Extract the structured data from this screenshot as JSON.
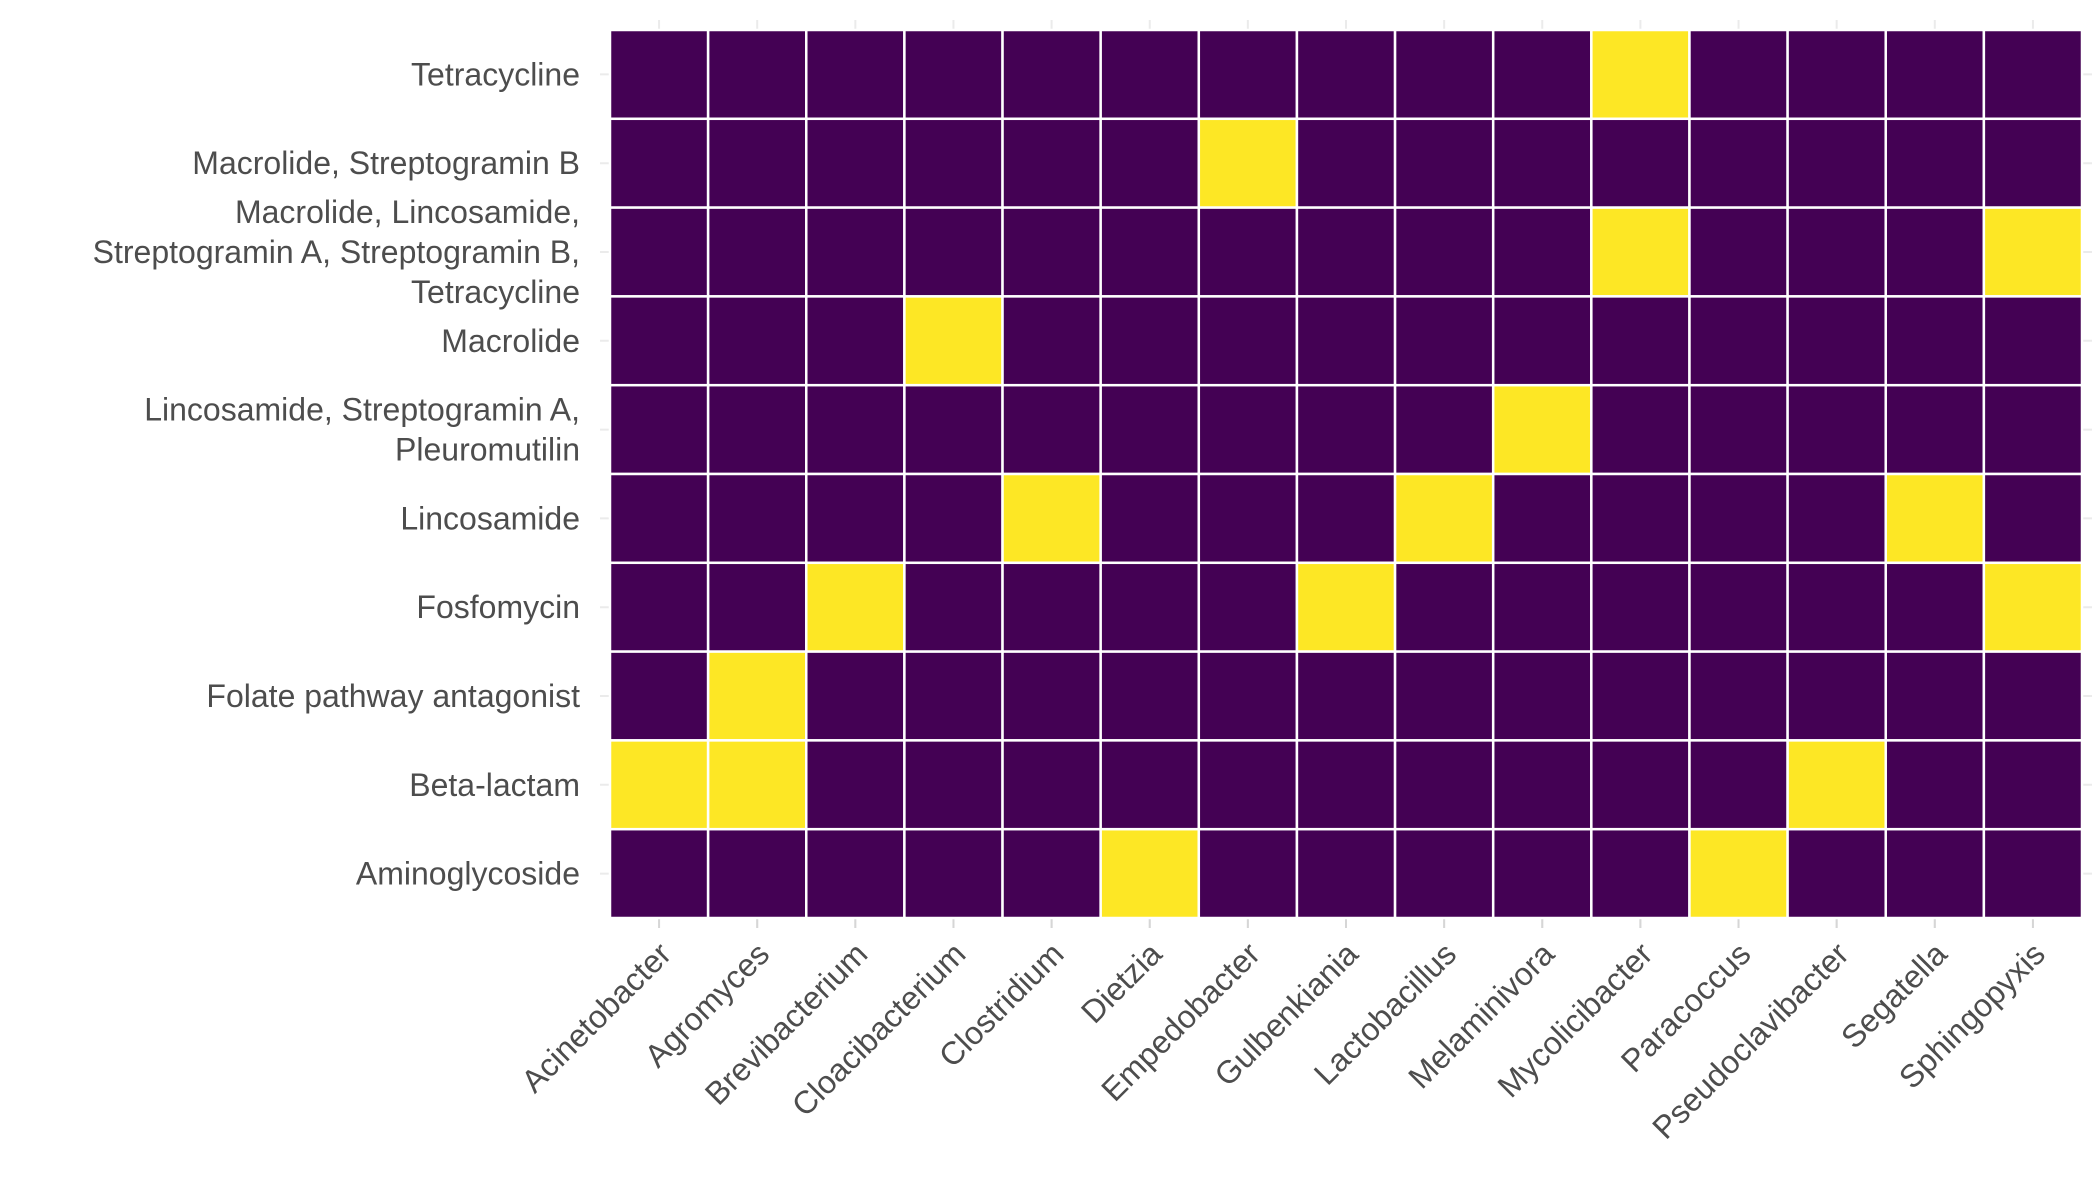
{
  "chart_data": {
    "type": "heatmap",
    "title": "",
    "xlabel": "",
    "ylabel": "",
    "legend": "none",
    "grid": true,
    "colors": {
      "absent": "#440154",
      "present": "#FDE725",
      "cell_border": "#ffffff",
      "gridline": "#ebebeb",
      "text": "#4d4d4d"
    },
    "x_categories": [
      "Acinetobacter",
      "Agromyces",
      "Brevibacterium",
      "Cloacibacterium",
      "Clostridium",
      "Dietzia",
      "Empedobacter",
      "Gulbenkiania",
      "Lactobacillus",
      "Melaminivora",
      "Mycolicibacter",
      "Paracoccus",
      "Pseudoclavibacter",
      "Segatella",
      "Sphingopyxis"
    ],
    "y_categories": [
      [
        "Tetracycline"
      ],
      [
        "Macrolide, Streptogramin B"
      ],
      [
        "Macrolide, Lincosamide,",
        "Streptogramin A, Streptogramin B,",
        "Tetracycline"
      ],
      [
        "Macrolide"
      ],
      [
        "Lincosamide, Streptogramin A,",
        "Pleuromutilin"
      ],
      [
        "Lincosamide"
      ],
      [
        "Fosfomycin"
      ],
      [
        "Folate pathway antagonist"
      ],
      [
        "Beta-lactam"
      ],
      [
        "Aminoglycoside"
      ]
    ],
    "values": [
      [
        0,
        0,
        0,
        0,
        0,
        0,
        0,
        0,
        0,
        0,
        1,
        0,
        0,
        0,
        0
      ],
      [
        0,
        0,
        0,
        0,
        0,
        0,
        1,
        0,
        0,
        0,
        0,
        0,
        0,
        0,
        0
      ],
      [
        0,
        0,
        0,
        0,
        0,
        0,
        0,
        0,
        0,
        0,
        1,
        0,
        0,
        0,
        1
      ],
      [
        0,
        0,
        0,
        1,
        0,
        0,
        0,
        0,
        0,
        0,
        0,
        0,
        0,
        0,
        0
      ],
      [
        0,
        0,
        0,
        0,
        0,
        0,
        0,
        0,
        0,
        1,
        0,
        0,
        0,
        0,
        0
      ],
      [
        0,
        0,
        0,
        0,
        1,
        0,
        0,
        0,
        1,
        0,
        0,
        0,
        0,
        1,
        0
      ],
      [
        0,
        0,
        1,
        0,
        0,
        0,
        0,
        1,
        0,
        0,
        0,
        0,
        0,
        0,
        1
      ],
      [
        0,
        1,
        0,
        0,
        0,
        0,
        0,
        0,
        0,
        0,
        0,
        0,
        0,
        0,
        0
      ],
      [
        1,
        1,
        0,
        0,
        0,
        0,
        0,
        0,
        0,
        0,
        0,
        0,
        1,
        0,
        0
      ],
      [
        0,
        0,
        0,
        0,
        0,
        1,
        0,
        0,
        0,
        0,
        0,
        1,
        0,
        0,
        0
      ]
    ]
  }
}
